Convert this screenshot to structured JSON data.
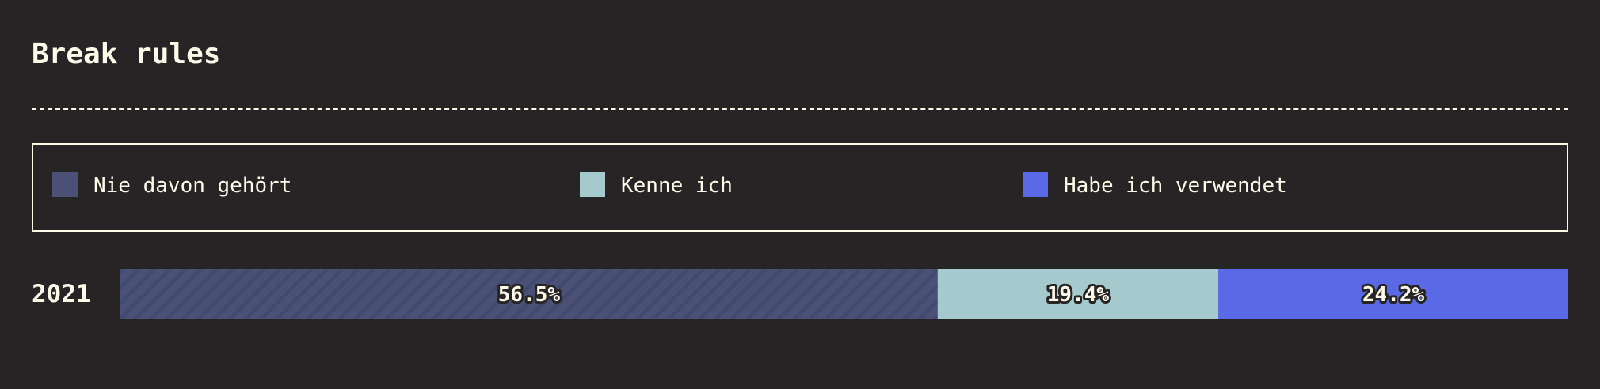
{
  "title": "Break rules",
  "legend": [
    {
      "label": "Nie davon gehört",
      "color": "#4a5076"
    },
    {
      "label": "Kenne ich",
      "color": "#a4cacd"
    },
    {
      "label": "Habe ich verwendet",
      "color": "#5a6ae6"
    }
  ],
  "chart_data": {
    "type": "bar",
    "orientation": "horizontal",
    "stacked": true,
    "categories": [
      "2021"
    ],
    "series": [
      {
        "name": "Nie davon gehört",
        "values": [
          56.5
        ],
        "label": "56.5%",
        "color": "#4a5076",
        "pattern": "diagonal-stripes"
      },
      {
        "name": "Kenne ich",
        "values": [
          19.4
        ],
        "label": "19.4%",
        "color": "#a4cacd"
      },
      {
        "name": "Habe ich verwendet",
        "values": [
          24.2
        ],
        "label": "24.2%",
        "color": "#5a6ae6"
      }
    ],
    "unit": "%",
    "xlim": [
      0,
      100.1
    ],
    "legend_position": "top"
  }
}
